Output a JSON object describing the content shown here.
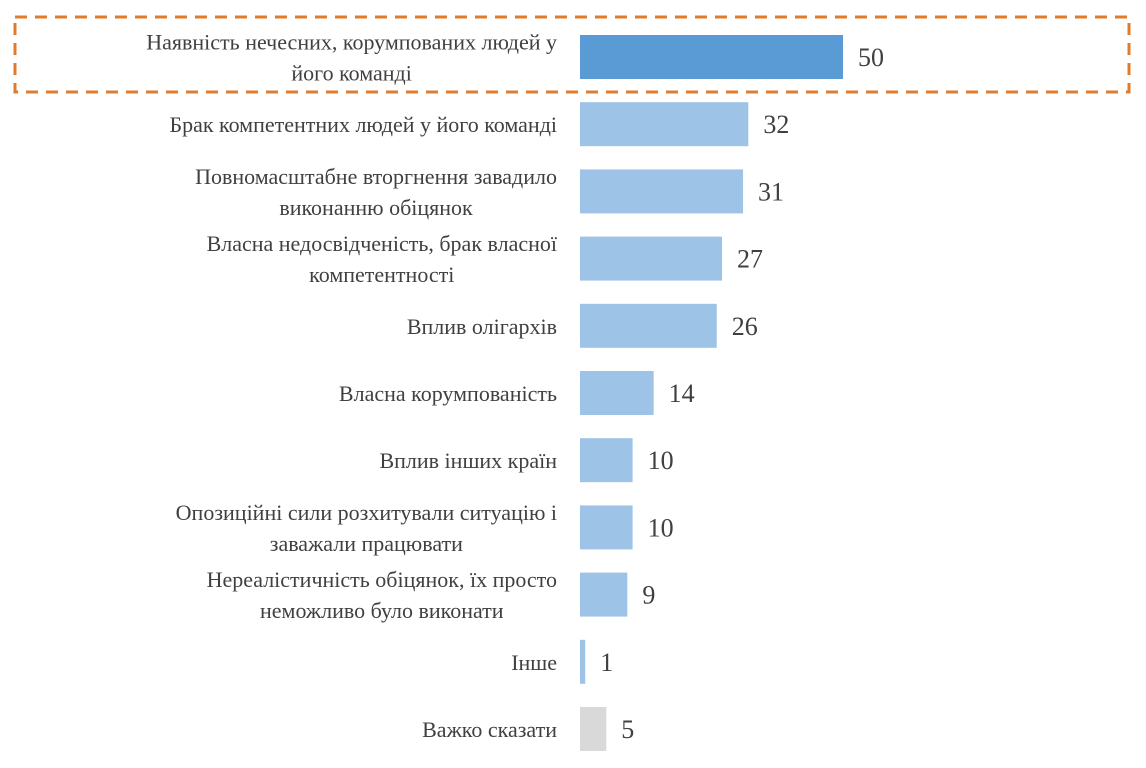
{
  "chart_data": {
    "type": "bar",
    "orientation": "horizontal",
    "categories": [
      [
        "Наявність нечесних, корумпованих людей у",
        "його команді"
      ],
      [
        "Брак компетентних людей у його команді"
      ],
      [
        "Повномасштабне вторгнення завадило",
        "виконанню обіцянок"
      ],
      [
        "Власна недосвідченість, брак власної",
        "компетентності"
      ],
      [
        "Вплив олігархів"
      ],
      [
        "Власна корумпованість"
      ],
      [
        "Вплив інших країн"
      ],
      [
        "Опозиційні сили розхитували ситуацію і",
        "заважали працювати"
      ],
      [
        "Нереалістичність обіцянок, їх просто",
        "неможливо було виконати"
      ],
      [
        "Інше"
      ],
      [
        "Важко сказати"
      ]
    ],
    "values": [
      50,
      32,
      31,
      27,
      26,
      14,
      10,
      10,
      9,
      1,
      5
    ],
    "bar_colors": [
      "#5B9BD5",
      "#9DC3E6",
      "#9DC3E6",
      "#9DC3E6",
      "#9DC3E6",
      "#9DC3E6",
      "#9DC3E6",
      "#9DC3E6",
      "#9DC3E6",
      "#9DC3E6",
      "#D9D9D9"
    ],
    "highlight": {
      "index": 0,
      "style": "dashed-box",
      "color": "#E07B2E"
    },
    "data_labels": true,
    "grid": false,
    "xlim": [
      0,
      50
    ]
  }
}
